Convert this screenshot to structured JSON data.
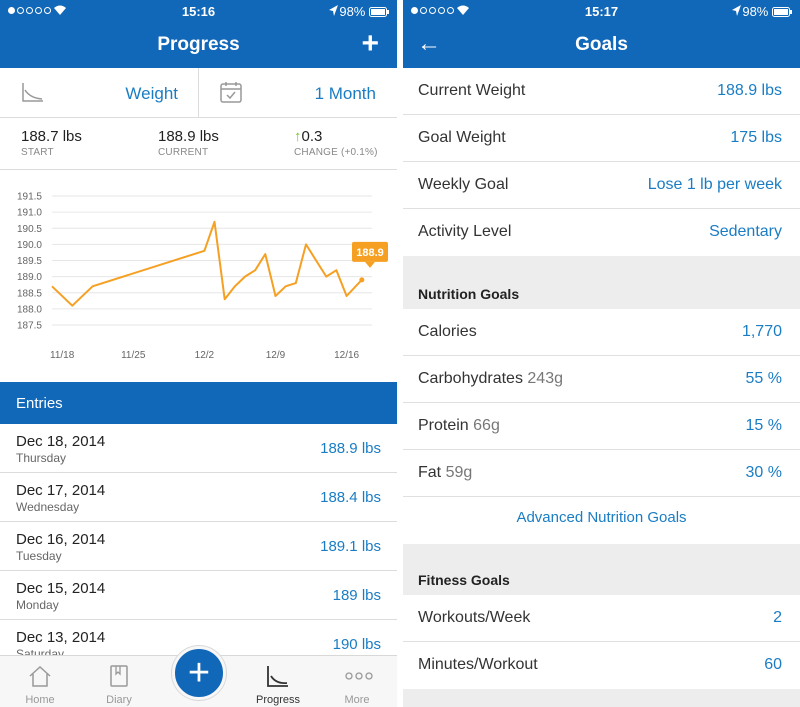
{
  "status_left": {
    "time": "15:16",
    "battery": "98%"
  },
  "status_right": {
    "time": "15:17",
    "battery": "98%"
  },
  "progress": {
    "title": "Progress",
    "metric": "Weight",
    "period": "1 Month",
    "start": {
      "value": "188.7 lbs",
      "label": "START"
    },
    "current": {
      "value": "188.9 lbs",
      "label": "CURRENT"
    },
    "change": {
      "value": "0.3",
      "label": "CHANGE (+0.1%)"
    },
    "entries_title": "Entries",
    "entries": [
      {
        "date": "Dec 18, 2014",
        "day": "Thursday",
        "weight": "188.9 lbs"
      },
      {
        "date": "Dec 17, 2014",
        "day": "Wednesday",
        "weight": "188.4 lbs"
      },
      {
        "date": "Dec 16, 2014",
        "day": "Tuesday",
        "weight": "189.1 lbs"
      },
      {
        "date": "Dec 15, 2014",
        "day": "Monday",
        "weight": "189 lbs"
      },
      {
        "date": "Dec 13, 2014",
        "day": "Saturday",
        "weight": "190 lbs"
      }
    ],
    "tabs": {
      "home": "Home",
      "diary": "Diary",
      "progress": "Progress",
      "more": "More"
    }
  },
  "chart_data": {
    "type": "line",
    "title": "",
    "xlabel": "",
    "ylabel": "",
    "ylim": [
      187.5,
      191.5
    ],
    "yticks": [
      "191.5",
      "191.0",
      "190.5",
      "190.0",
      "189.5",
      "189.0",
      "188.5",
      "188.0",
      "187.5"
    ],
    "xticks": [
      {
        "day": 0,
        "label": "11/18"
      },
      {
        "day": 7,
        "label": "11/25"
      },
      {
        "day": 14,
        "label": "12/2"
      },
      {
        "day": 21,
        "label": "12/9"
      },
      {
        "day": 28,
        "label": "12/16"
      }
    ],
    "xlim": [
      -1,
      30.5
    ],
    "series": [
      {
        "name": "Weight",
        "color": "#f5a023",
        "points": [
          [
            -1,
            188.7
          ],
          [
            1,
            188.1
          ],
          [
            3,
            188.7
          ],
          [
            14,
            189.8
          ],
          [
            15,
            190.7
          ],
          [
            16,
            188.3
          ],
          [
            17,
            188.7
          ],
          [
            18,
            189.0
          ],
          [
            19,
            189.2
          ],
          [
            20,
            189.7
          ],
          [
            21,
            188.4
          ],
          [
            22,
            188.7
          ],
          [
            23,
            188.8
          ],
          [
            24,
            190.0
          ],
          [
            25,
            189.5
          ],
          [
            26,
            189.0
          ],
          [
            27,
            189.2
          ],
          [
            28,
            188.4
          ],
          [
            29.5,
            188.9
          ]
        ]
      }
    ],
    "callout": "188.9"
  },
  "goals": {
    "title": "Goals",
    "basic": [
      {
        "label": "Current Weight",
        "value": "188.9 lbs"
      },
      {
        "label": "Goal Weight",
        "value": "175 lbs"
      },
      {
        "label": "Weekly Goal",
        "value": "Lose 1 lb per week"
      },
      {
        "label": "Activity Level",
        "value": "Sedentary"
      }
    ],
    "nutrition_title": "Nutrition Goals",
    "nutrition": [
      {
        "label": "Calories",
        "sub": "",
        "value": "1,770"
      },
      {
        "label": "Carbohydrates",
        "sub": "243g",
        "value": "55 %"
      },
      {
        "label": "Protein",
        "sub": "66g",
        "value": "15 %"
      },
      {
        "label": "Fat",
        "sub": "59g",
        "value": "30 %"
      }
    ],
    "advanced_link": "Advanced Nutrition Goals",
    "fitness_title": "Fitness Goals",
    "fitness": [
      {
        "label": "Workouts/Week",
        "value": "2"
      },
      {
        "label": "Minutes/Workout",
        "value": "60"
      }
    ]
  },
  "colors": {
    "brand": "#1167b8",
    "link": "#1a7dc4",
    "accent": "#f5a023",
    "up": "#7cc230"
  }
}
